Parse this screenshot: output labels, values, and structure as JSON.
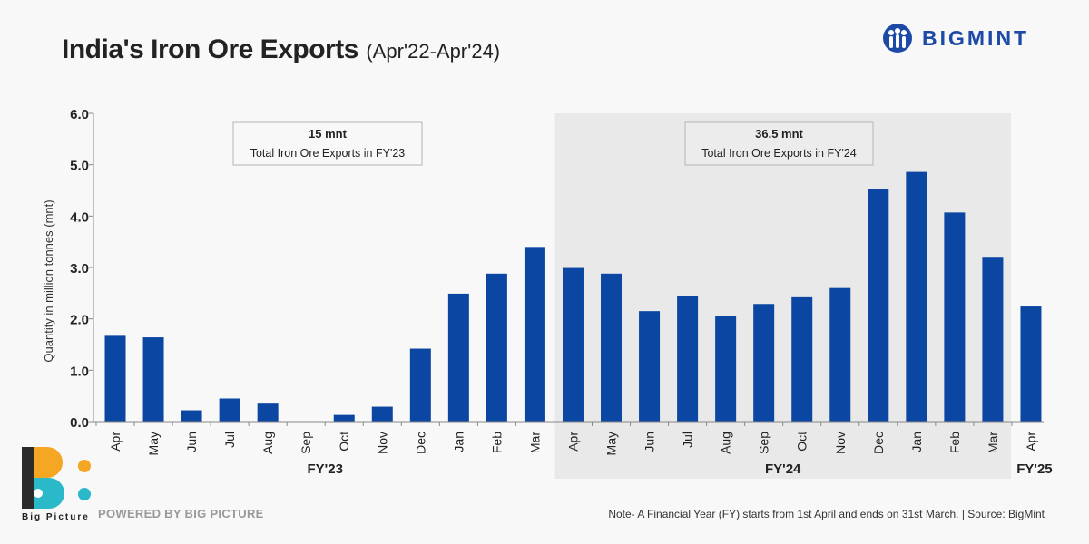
{
  "header": {
    "title": "India's Iron Ore Exports",
    "subtitle": "(Apr'22-Apr'24)"
  },
  "brand": {
    "name": "BIGMINT",
    "color": "#1c4aa6"
  },
  "footer": {
    "powered": "POWERED BY BIG PICTURE",
    "logo_text": "Big Picture",
    "note": "Note- A Financial Year (FY) starts from 1st April and ends on 31st March. | Source: BigMint"
  },
  "colors": {
    "bar": "#0c46a3",
    "shade": "#e9e9ea",
    "axis": "#888888"
  },
  "chart_data": {
    "type": "bar",
    "title": "India's Iron Ore Exports",
    "subtitle": "(Apr'22-Apr'24)",
    "ylabel": "Quantity in million tonnes (mnt)",
    "xlabel": "",
    "ylim": [
      0,
      6
    ],
    "yticks": [
      "0.0",
      "1.0",
      "2.0",
      "3.0",
      "4.0",
      "5.0",
      "6.0"
    ],
    "grid": false,
    "categories": [
      "Apr",
      "May",
      "Jun",
      "Jul",
      "Aug",
      "Sep",
      "Oct",
      "Nov",
      "Dec",
      "Jan",
      "Feb",
      "Mar",
      "Apr",
      "May",
      "Jun",
      "Jul",
      "Aug",
      "Sep",
      "Oct",
      "Nov",
      "Dec",
      "Jan",
      "Feb",
      "Mar",
      "Apr"
    ],
    "values": [
      1.67,
      1.64,
      0.22,
      0.45,
      0.35,
      0.0,
      0.13,
      0.29,
      1.42,
      2.49,
      2.88,
      3.4,
      2.99,
      2.88,
      2.15,
      2.45,
      2.06,
      2.29,
      2.42,
      2.6,
      4.53,
      4.86,
      4.07,
      3.19,
      2.24
    ],
    "groups": [
      {
        "label": "FY'23",
        "start": 0,
        "end": 11
      },
      {
        "label": "FY'24",
        "start": 12,
        "end": 23,
        "shaded": true
      },
      {
        "label": "FY'25",
        "start": 24,
        "end": 24
      }
    ],
    "annotations": [
      {
        "value": "15 mnt",
        "text": "Total Iron Ore Exports in FY'23",
        "group": 0
      },
      {
        "value": "36.5 mnt",
        "text": "Total Iron Ore Exports in FY'24",
        "group": 1
      }
    ]
  }
}
